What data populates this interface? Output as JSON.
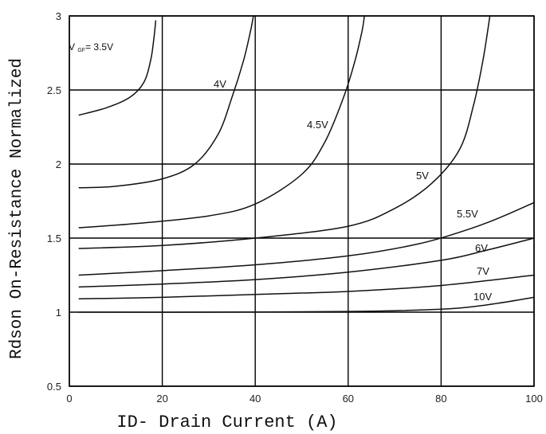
{
  "chart_data": {
    "type": "line",
    "xlabel": "ID- Drain Current (A)",
    "ylabel": "Rdson On-Resistance Normalized",
    "xlim": [
      0,
      100
    ],
    "ylim": [
      0.5,
      3
    ],
    "x_ticks": [
      "0",
      "20",
      "40",
      "60",
      "80",
      "100"
    ],
    "y_ticks": [
      "0.5",
      "1",
      "1.5",
      "2",
      "2.5",
      "3"
    ],
    "grid": true,
    "gate_label_prefix": "V",
    "gate_label_sub": "GF",
    "series": [
      {
        "name": "3.5V",
        "label": "= 3.5V",
        "points": [
          [
            2,
            2.33
          ],
          [
            8,
            2.38
          ],
          [
            13,
            2.45
          ],
          [
            16,
            2.55
          ],
          [
            17.5,
            2.7
          ],
          [
            18.2,
            2.85
          ],
          [
            18.6,
            2.97
          ]
        ]
      },
      {
        "name": "4V",
        "label": "4V",
        "points": [
          [
            2,
            1.84
          ],
          [
            10,
            1.85
          ],
          [
            20,
            1.9
          ],
          [
            27,
            2.0
          ],
          [
            32,
            2.2
          ],
          [
            35,
            2.45
          ],
          [
            37.5,
            2.7
          ],
          [
            39,
            2.9
          ],
          [
            39.6,
            3.0
          ]
        ]
      },
      {
        "name": "4.5V",
        "label": "4.5V",
        "points": [
          [
            2,
            1.57
          ],
          [
            15,
            1.6
          ],
          [
            30,
            1.65
          ],
          [
            40,
            1.73
          ],
          [
            50,
            1.93
          ],
          [
            55,
            2.15
          ],
          [
            59,
            2.45
          ],
          [
            61.5,
            2.7
          ],
          [
            63,
            2.9
          ],
          [
            63.5,
            3.0
          ]
        ]
      },
      {
        "name": "5V",
        "label": "5V",
        "points": [
          [
            2,
            1.43
          ],
          [
            20,
            1.45
          ],
          [
            40,
            1.5
          ],
          [
            60,
            1.58
          ],
          [
            70,
            1.7
          ],
          [
            78,
            1.87
          ],
          [
            84,
            2.1
          ],
          [
            87,
            2.4
          ],
          [
            89,
            2.7
          ],
          [
            90.5,
            3.0
          ]
        ]
      },
      {
        "name": "5.5V",
        "label": "5.5V",
        "points": [
          [
            2,
            1.25
          ],
          [
            20,
            1.28
          ],
          [
            40,
            1.32
          ],
          [
            60,
            1.38
          ],
          [
            75,
            1.46
          ],
          [
            85,
            1.55
          ],
          [
            92,
            1.63
          ],
          [
            100,
            1.74
          ]
        ]
      },
      {
        "name": "6V",
        "label": "6V",
        "points": [
          [
            2,
            1.17
          ],
          [
            20,
            1.19
          ],
          [
            40,
            1.22
          ],
          [
            60,
            1.27
          ],
          [
            80,
            1.35
          ],
          [
            90,
            1.42
          ],
          [
            100,
            1.5
          ]
        ]
      },
      {
        "name": "7V",
        "label": "7V",
        "points": [
          [
            2,
            1.09
          ],
          [
            20,
            1.1
          ],
          [
            40,
            1.12
          ],
          [
            60,
            1.14
          ],
          [
            80,
            1.18
          ],
          [
            100,
            1.25
          ]
        ]
      },
      {
        "name": "10V",
        "label": "10V",
        "points": [
          [
            2,
            1.0
          ],
          [
            30,
            1.0
          ],
          [
            60,
            1.005
          ],
          [
            80,
            1.02
          ],
          [
            90,
            1.05
          ],
          [
            100,
            1.1
          ]
        ]
      }
    ]
  }
}
